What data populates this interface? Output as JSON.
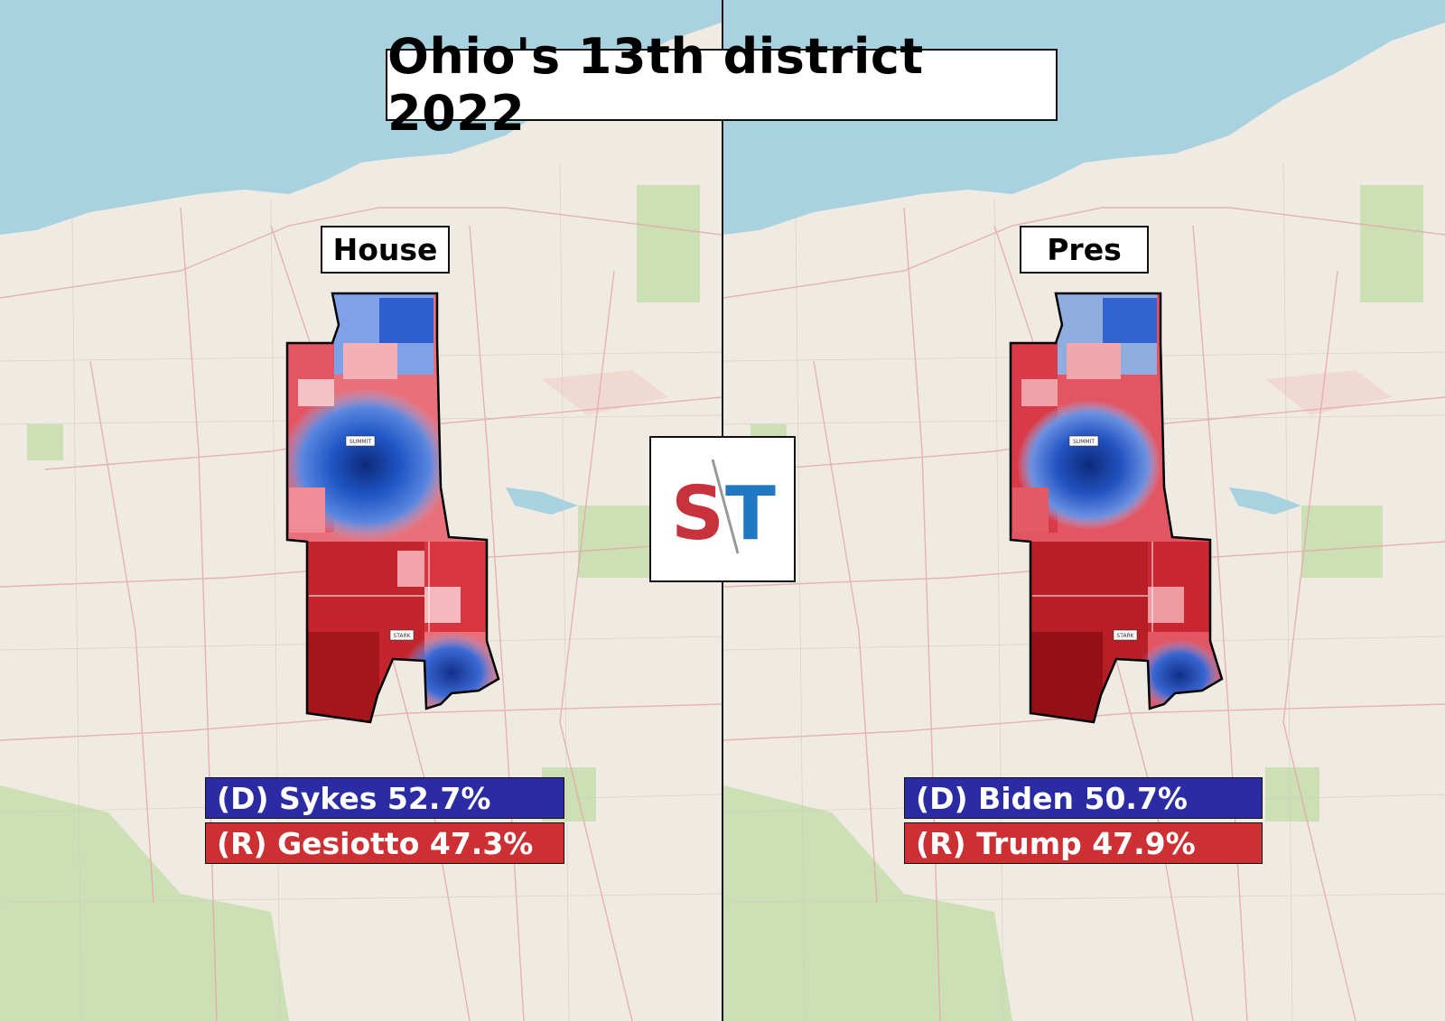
{
  "title": "Ohio's 13th district 2022",
  "colors": {
    "lake": "#a9d2e0",
    "land": "#efeae2",
    "dem": "#2b2ca3",
    "rep": "#cc3033",
    "logo_red": "#c8323c",
    "logo_blue": "#1f78c1"
  },
  "logo": {
    "letters": "ST"
  },
  "panels": [
    {
      "label": "House",
      "results": {
        "dem": "(D) Sykes 52.7%",
        "rep": "(R) Gesiotto 47.3%"
      },
      "county_labels": [
        "SUMMIT",
        "STARK"
      ]
    },
    {
      "label": "Pres",
      "results": {
        "dem": "(D) Biden 50.7%",
        "rep": "(R) Trump 47.9%"
      },
      "county_labels": [
        "SUMMIT",
        "STARK"
      ]
    }
  ]
}
